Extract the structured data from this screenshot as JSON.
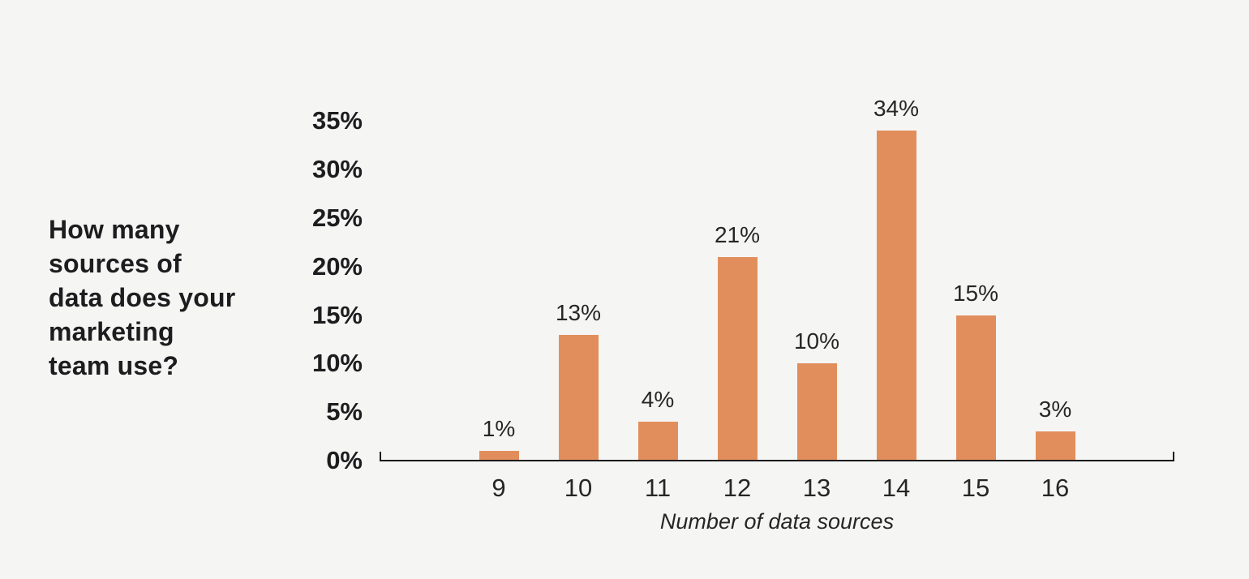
{
  "question_title": {
    "text": "How many sources of data does your marketing team use?",
    "lines": [
      "How many",
      "sources of",
      "data does your",
      "marketing",
      "team use?"
    ]
  },
  "colors": {
    "background": "#F5F5F4",
    "bar": "#E28E5C",
    "axis": "#1A1A1A",
    "title_text": "#1D1D1F",
    "label_text": "#262626"
  },
  "chart_data": {
    "type": "bar",
    "title": "How many sources of data does your marketing team use?",
    "categories": [
      "9",
      "10",
      "11",
      "12",
      "13",
      "14",
      "15",
      "16"
    ],
    "values": [
      1,
      13,
      4,
      21,
      10,
      34,
      15,
      3
    ],
    "value_labels": [
      "1%",
      "13%",
      "4%",
      "21%",
      "10%",
      "34%",
      "15%",
      "3%"
    ],
    "xlabel": "Number of data sources",
    "ylabel": "",
    "ylim": [
      0,
      35
    ],
    "ytick_step": 5,
    "ytick_labels": [
      "0%",
      "5%",
      "10%",
      "15%",
      "20%",
      "25%",
      "30%",
      "35%"
    ],
    "grid": false,
    "legend": "none"
  }
}
